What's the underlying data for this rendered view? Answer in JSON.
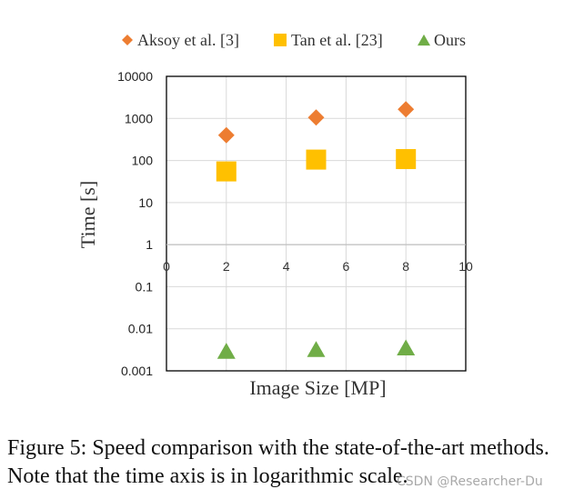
{
  "chart_data": {
    "type": "scatter",
    "xlabel": "Image Size [MP]",
    "ylabel": "Time [s]",
    "xlim": [
      0,
      10
    ],
    "x_ticks": [
      "0",
      "2",
      "4",
      "6",
      "8",
      "10"
    ],
    "y_scale": "log",
    "ylim": [
      0.001,
      10000
    ],
    "y_ticks": [
      "10000",
      "1000",
      "100",
      "10",
      "1",
      "0.1",
      "0.01",
      "0.001"
    ],
    "grid": true,
    "legend_position": "top",
    "series": [
      {
        "name": "Aksoy et al. [3]",
        "marker": "diamond",
        "color": "#ED7D31",
        "points": [
          {
            "x": 2,
            "y": 400
          },
          {
            "x": 5,
            "y": 1050
          },
          {
            "x": 8,
            "y": 1650
          }
        ]
      },
      {
        "name": "Tan et al. [23]",
        "marker": "square",
        "color": "#FFC000",
        "points": [
          {
            "x": 2,
            "y": 55
          },
          {
            "x": 5,
            "y": 105
          },
          {
            "x": 8,
            "y": 108
          }
        ]
      },
      {
        "name": "Ours",
        "marker": "triangle",
        "color": "#70AD47",
        "points": [
          {
            "x": 2,
            "y": 0.003
          },
          {
            "x": 5,
            "y": 0.0033
          },
          {
            "x": 8,
            "y": 0.0036
          }
        ]
      }
    ]
  },
  "caption": "Figure 5: Speed comparison with the state-of-the-art methods. Note that the time axis is in logarithmic scale.",
  "watermark": "CSDN @Researcher-Du"
}
